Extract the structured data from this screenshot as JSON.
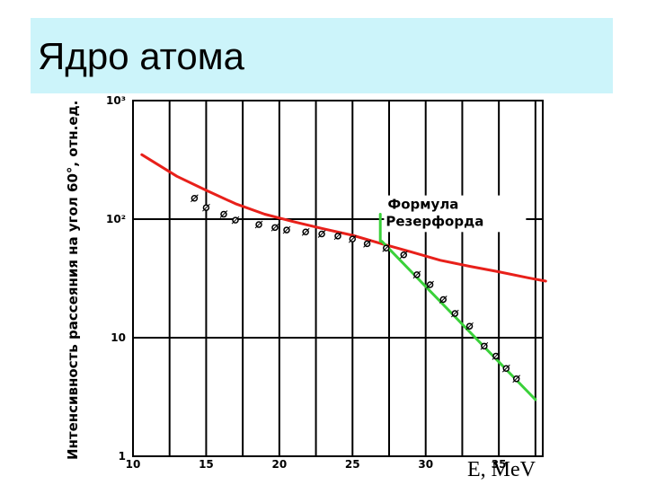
{
  "slide": {
    "title": "Ядро атома"
  },
  "chart_data": {
    "type": "line",
    "title": "",
    "xlabel": "E, MeV",
    "ylabel": "Интенсивность рассеяния на угол 60°, отн.ед.",
    "xlim": [
      10,
      38
    ],
    "ylim": [
      1,
      1000
    ],
    "yscale": "log",
    "grid": true,
    "x_ticks": [
      "10",
      "15",
      "20",
      "25",
      "30",
      "35"
    ],
    "y_ticks": [
      {
        "value": 1,
        "label": "1"
      },
      {
        "value": 10,
        "label": "10"
      },
      {
        "value": 100,
        "label": "10²"
      },
      {
        "value": 1000,
        "label": "10³"
      }
    ],
    "annotation": [
      "Формула",
      "Резерфорда"
    ],
    "series": [
      {
        "name": "",
        "style": "curve",
        "color": "#e8201a",
        "x": [
          10.6,
          13,
          15,
          17,
          19,
          21,
          23,
          25,
          27,
          29,
          31,
          33,
          35,
          37,
          38.2
        ],
        "y": [
          350,
          230,
          175,
          135,
          110,
          95,
          83,
          73,
          62,
          53,
          45,
          40,
          36,
          32,
          30
        ]
      },
      {
        "name": "",
        "style": "line",
        "color": "#3ad13a",
        "x": [
          27,
          37.5
        ],
        "y": [
          65,
          3
        ]
      },
      {
        "name": "",
        "style": "segment",
        "color": "#3ad13a",
        "x": [
          26.9,
          26.9
        ],
        "y": [
          110,
          65
        ]
      },
      {
        "name": "",
        "style": "markers",
        "color": "#000000",
        "x": [
          14.2,
          15,
          16.2,
          17,
          18.6,
          19.7,
          20.5,
          21.8,
          22.9,
          24,
          25,
          26,
          27.3,
          28.5,
          29.4,
          30.3,
          31.2,
          32,
          33,
          34,
          34.8,
          35.5,
          36.2
        ],
        "y": [
          150,
          125,
          110,
          98,
          90,
          85,
          81,
          78,
          75,
          72,
          68,
          62,
          57,
          50,
          34,
          28,
          21,
          16,
          12.5,
          8.5,
          7,
          5.5,
          4.5
        ]
      }
    ]
  }
}
